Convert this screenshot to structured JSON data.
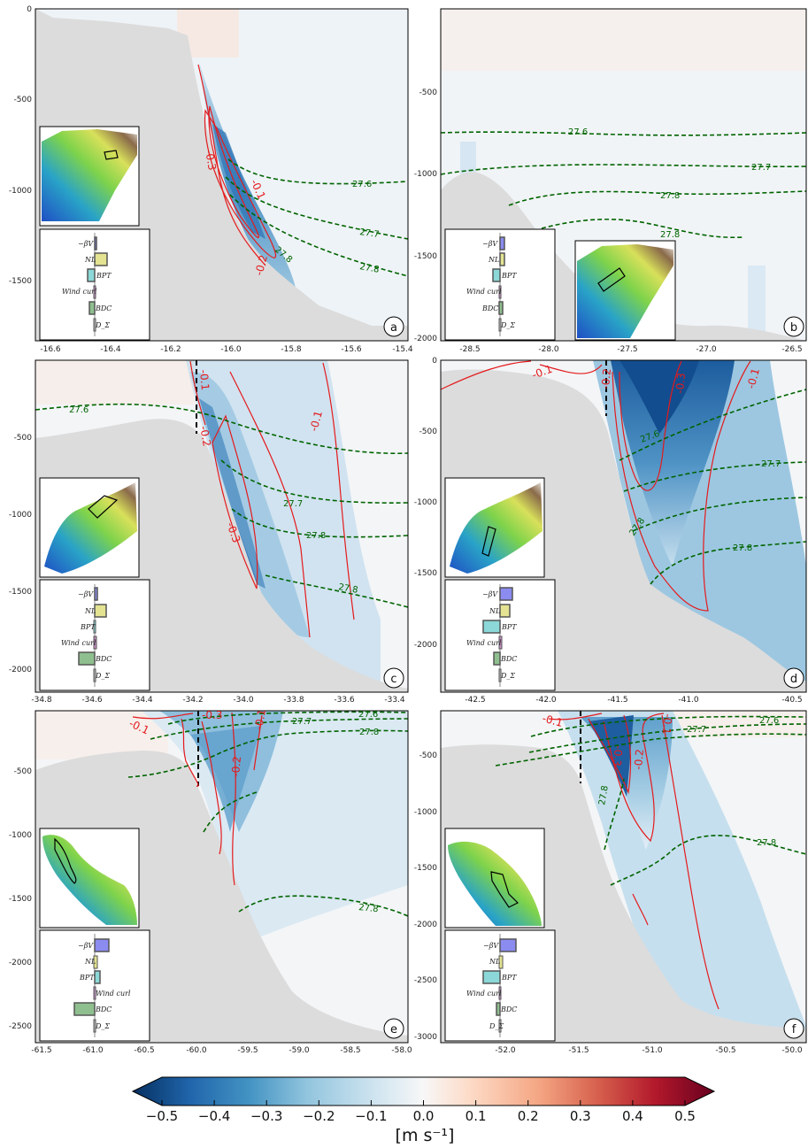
{
  "colors": {
    "land": "#dcdcdc",
    "contour_red": "#e41a1c",
    "isopycnal_green": "#006400",
    "section_line": "#000000"
  },
  "colorbar": {
    "ticks": [
      "−0.5",
      "−0.4",
      "−0.3",
      "−0.2",
      "−0.1",
      "0.0",
      "0.1",
      "0.2",
      "0.3",
      "0.4",
      "0.5"
    ],
    "label": "[m s⁻¹]",
    "range": [
      -0.5,
      0.5
    ]
  },
  "panels": [
    {
      "id": "a",
      "letter": "a",
      "xticks": [
        "-16.6",
        "-16.4",
        "-16.2",
        "-16.0",
        "-15.8",
        "-15.6",
        "-15.4"
      ],
      "yticks": [
        "0",
        "-500",
        "-1000",
        "-1500"
      ],
      "red_labels": [
        "-0.3",
        "-0.1",
        "-0.2"
      ],
      "green_labels": [
        "27.6",
        "27.7",
        "27.8",
        "27.8"
      ],
      "bar_labels": [
        "−βV",
        "NL",
        "BPT",
        "Wind curl",
        "BDC",
        "D_Σ"
      ]
    },
    {
      "id": "b",
      "letter": "b",
      "xticks": [
        "-28.5",
        "-28.0",
        "-27.5",
        "-27.0",
        "-26.5"
      ],
      "yticks": [
        "-500",
        "-1000",
        "-1500",
        "-2000"
      ],
      "red_labels": [],
      "green_labels": [
        "27.6",
        "27.7",
        "27.8",
        "27.8"
      ],
      "bar_labels": [
        "−βV",
        "NL",
        "BPT",
        "Wind curl",
        "BDC",
        "D_Σ"
      ]
    },
    {
      "id": "c",
      "letter": "c",
      "xticks": [
        "-34.8",
        "-34.6",
        "-34.4",
        "-34.2",
        "-34.0",
        "-33.8",
        "-33.6",
        "-33.4"
      ],
      "yticks": [
        "-500",
        "-1000",
        "-1500",
        "-2000"
      ],
      "red_labels": [
        "-0.1",
        "-0.2",
        "-0.3",
        "-0.1"
      ],
      "green_labels": [
        "27.6",
        "27.7",
        "27.8",
        "27.8"
      ],
      "bar_labels": [
        "−βV",
        "NL",
        "BPT",
        "Wind curl",
        "BDC",
        "D_Σ"
      ]
    },
    {
      "id": "d",
      "letter": "d",
      "xticks": [
        "-42.5",
        "-42.0",
        "-41.5",
        "-41.0",
        "-40.5"
      ],
      "yticks": [
        "0",
        "-500",
        "-1000",
        "-1500",
        "-2000"
      ],
      "red_labels": [
        "-0.1",
        "-0.2",
        "-0.3",
        "-0.1"
      ],
      "green_labels": [
        "27.6",
        "27.7",
        "27.8",
        "27.8"
      ],
      "bar_labels": [
        "−βV",
        "NL",
        "BPT",
        "Wind curl",
        "BDC",
        "D_Σ"
      ]
    },
    {
      "id": "e",
      "letter": "e",
      "xticks": [
        "-61.5",
        "-61.0",
        "-60.5",
        "-60.0",
        "-59.5",
        "-59.0",
        "-58.5",
        "-58.0"
      ],
      "yticks": [
        "-500",
        "-1000",
        "-1500",
        "-2000",
        "-2500"
      ],
      "red_labels": [
        "-0.1",
        "-0.3",
        "-0.2",
        "-0.1"
      ],
      "green_labels": [
        "27.6",
        "27.7",
        "27.8",
        "27.8"
      ],
      "bar_labels": [
        "−βV",
        "NL",
        "BPT",
        "Wind curl",
        "BDC",
        "D_Σ"
      ]
    },
    {
      "id": "f",
      "letter": "f",
      "xticks": [
        "-52.0",
        "-51.5",
        "-51.0",
        "-50.5",
        "-50.0"
      ],
      "yticks": [
        "-500",
        "-1000",
        "-1500",
        "-2000",
        "-2500",
        "-3000"
      ],
      "red_labels": [
        "-0.1",
        "-0.3",
        "-0.2",
        "-0.1"
      ],
      "green_labels": [
        "27.6",
        "27.7",
        "27.8",
        "27.8"
      ],
      "bar_labels": [
        "−βV",
        "NL",
        "BPT",
        "Wind curl",
        "BDC",
        "D_Σ"
      ]
    }
  ],
  "chart_data": [
    {
      "type": "heatmap",
      "panel": "a",
      "xlim": [
        -16.62,
        -15.38
      ],
      "ylim": [
        -1850,
        0
      ],
      "isopycnals": [
        27.6,
        27.7,
        27.8
      ],
      "velocity_contours": [
        -0.1,
        -0.2,
        -0.3
      ]
    },
    {
      "type": "heatmap",
      "panel": "b",
      "xlim": [
        -28.75,
        -26.45
      ],
      "ylim": [
        -2030,
        0
      ],
      "isopycnals": [
        27.6,
        27.7,
        27.8
      ],
      "velocity_contours": []
    },
    {
      "type": "heatmap",
      "panel": "c",
      "xlim": [
        -34.83,
        -33.35
      ],
      "ylim": [
        -2150,
        0
      ],
      "isopycnals": [
        27.6,
        27.7,
        27.8
      ],
      "velocity_contours": [
        -0.1,
        -0.2,
        -0.3
      ]
    },
    {
      "type": "heatmap",
      "panel": "d",
      "xlim": [
        -42.9,
        -40.35
      ],
      "ylim": [
        -2350,
        0
      ],
      "isopycnals": [
        27.6,
        27.7,
        27.8
      ],
      "velocity_contours": [
        -0.1,
        -0.2,
        -0.3
      ]
    },
    {
      "type": "heatmap",
      "panel": "e",
      "xlim": [
        -61.55,
        -57.95
      ],
      "ylim": [
        -2650,
        -50
      ],
      "isopycnals": [
        27.6,
        27.7,
        27.8
      ],
      "velocity_contours": [
        -0.1,
        -0.2,
        -0.3
      ]
    },
    {
      "type": "heatmap",
      "panel": "f",
      "xlim": [
        -52.45,
        -49.97
      ],
      "ylim": [
        -3200,
        -50
      ],
      "isopycnals": [
        27.6,
        27.7,
        27.8
      ],
      "velocity_contours": [
        -0.1,
        -0.2,
        -0.3
      ]
    }
  ]
}
